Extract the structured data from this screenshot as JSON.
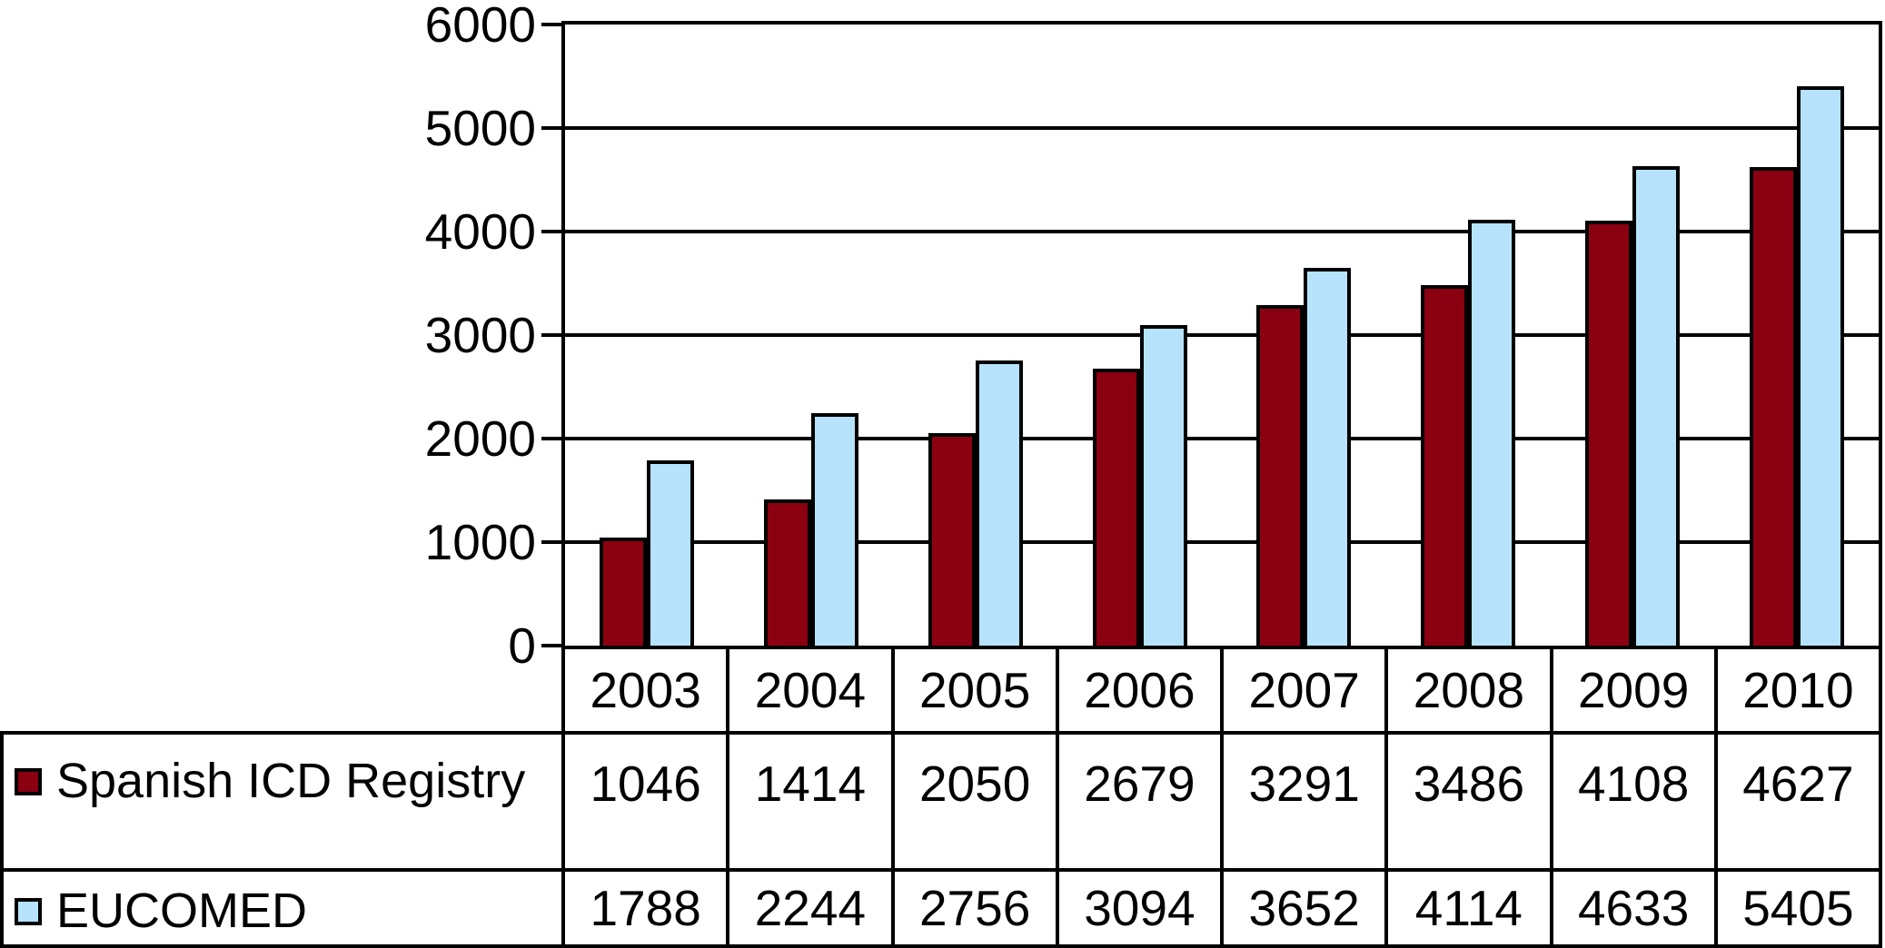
{
  "chart_data": {
    "type": "bar",
    "categories": [
      "2003",
      "2004",
      "2005",
      "2006",
      "2007",
      "2008",
      "2009",
      "2010"
    ],
    "series": [
      {
        "name": "Spanish ICD Registry",
        "color": "#8B0011",
        "values": [
          1046,
          1414,
          2050,
          2679,
          3291,
          3486,
          4108,
          4627
        ]
      },
      {
        "name": "EUCOMED",
        "color": "#B6E3FB",
        "values": [
          1788,
          2244,
          2756,
          3094,
          3652,
          4114,
          4633,
          5405
        ]
      }
    ],
    "title": "",
    "xlabel": "",
    "ylabel": "",
    "ylim": [
      0,
      6000
    ],
    "ytick_step": 1000,
    "yticks": [
      "0",
      "1000",
      "2000",
      "3000",
      "4000",
      "5000",
      "6000"
    ],
    "grid": "horizontal",
    "legend_position": "data-table-below-left",
    "bar_border_color": "#000000",
    "grid_color": "#000000"
  }
}
